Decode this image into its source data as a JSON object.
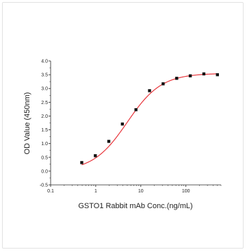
{
  "chart_data": {
    "type": "scatter",
    "title": "",
    "xlabel": "GSTO1 Rabbit mAb Conc.(ng/mL)",
    "ylabel": "OD Value (450nm)",
    "xscale": "log",
    "xlim": [
      0.1,
      600
    ],
    "ylim": [
      -0.5,
      4.0
    ],
    "x_ticks": [
      0.1,
      1,
      10,
      100
    ],
    "x_tick_labels": [
      "0.1",
      "1",
      "10",
      "100"
    ],
    "y_ticks": [
      -0.5,
      0.0,
      0.5,
      1.0,
      1.5,
      2.0,
      2.5,
      3.0,
      3.5,
      4.0
    ],
    "y_tick_labels": [
      "-0.5",
      "0.0",
      "0.5",
      "1.0",
      "1.5",
      "2.0",
      "2.5",
      "3.0",
      "3.5",
      "4.0"
    ],
    "grid": false,
    "legend": "none",
    "series": [
      {
        "values": [
          {
            "x": 0.49,
            "y": 0.31
          },
          {
            "x": 0.98,
            "y": 0.56
          },
          {
            "x": 1.95,
            "y": 1.08
          },
          {
            "x": 3.9,
            "y": 1.71
          },
          {
            "x": 7.8,
            "y": 2.23
          },
          {
            "x": 15.6,
            "y": 2.92
          },
          {
            "x": 31.25,
            "y": 3.17
          },
          {
            "x": 62.5,
            "y": 3.37
          },
          {
            "x": 125,
            "y": 3.46
          },
          {
            "x": 250,
            "y": 3.53
          },
          {
            "x": 500,
            "y": 3.5
          }
        ],
        "marker_color": "#111111"
      }
    ],
    "fit_curve": {
      "model": "4-parameter logistic",
      "color": "#e8343a",
      "bottom": 0.0,
      "top": 3.55,
      "ec50": 5.0,
      "hill": 1.15,
      "x_range": [
        0.49,
        500
      ]
    }
  }
}
